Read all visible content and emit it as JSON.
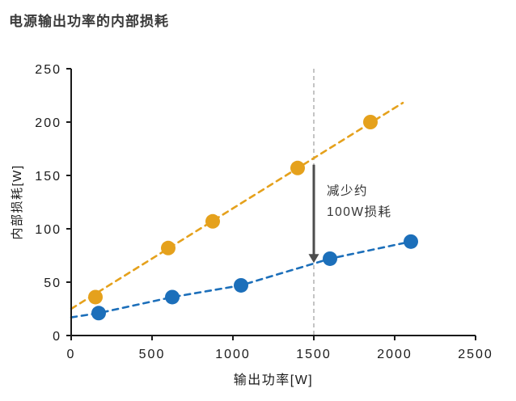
{
  "header": {
    "title": "电源输出功率的内部损耗"
  },
  "chart_data": {
    "type": "line",
    "title": "电源输出功率的内部损耗",
    "xlabel": "输出功率[W]",
    "ylabel": "内部损耗[W]",
    "xlim": [
      0,
      2500
    ],
    "ylim": [
      0,
      250
    ],
    "xticks": [
      0,
      500,
      1000,
      1500,
      2000,
      2500
    ],
    "yticks": [
      0,
      50,
      100,
      150,
      200,
      250
    ],
    "grid": false,
    "legend": "none",
    "series": [
      {
        "id": "orange-series",
        "color": "#E5A11C",
        "line_style": "dashed",
        "points": [
          [
            150,
            36
          ],
          [
            600,
            82
          ],
          [
            875,
            107
          ],
          [
            1400,
            157
          ],
          [
            1850,
            200
          ]
        ],
        "trend": [
          [
            0,
            25
          ],
          [
            2050,
            218
          ]
        ]
      },
      {
        "id": "blue-series",
        "color": "#1C6FBA",
        "line_style": "dashed",
        "points": [
          [
            170,
            21
          ],
          [
            625,
            36
          ],
          [
            1050,
            47
          ],
          [
            1600,
            72
          ],
          [
            2100,
            88
          ]
        ],
        "trend": [
          [
            0,
            17
          ],
          [
            170,
            21
          ],
          [
            625,
            36
          ],
          [
            1050,
            47
          ],
          [
            1600,
            72
          ],
          [
            2100,
            88
          ]
        ]
      }
    ],
    "reference_line": {
      "x": 1500,
      "color": "#aaaaaa",
      "style": "dashed"
    },
    "annotation": {
      "text_lines": [
        "减少约",
        "100W损耗"
      ],
      "color": "#333333",
      "arrow": {
        "x": 1500,
        "from_y": 160,
        "to_y": 68,
        "color": "#4d4d4d"
      }
    }
  }
}
